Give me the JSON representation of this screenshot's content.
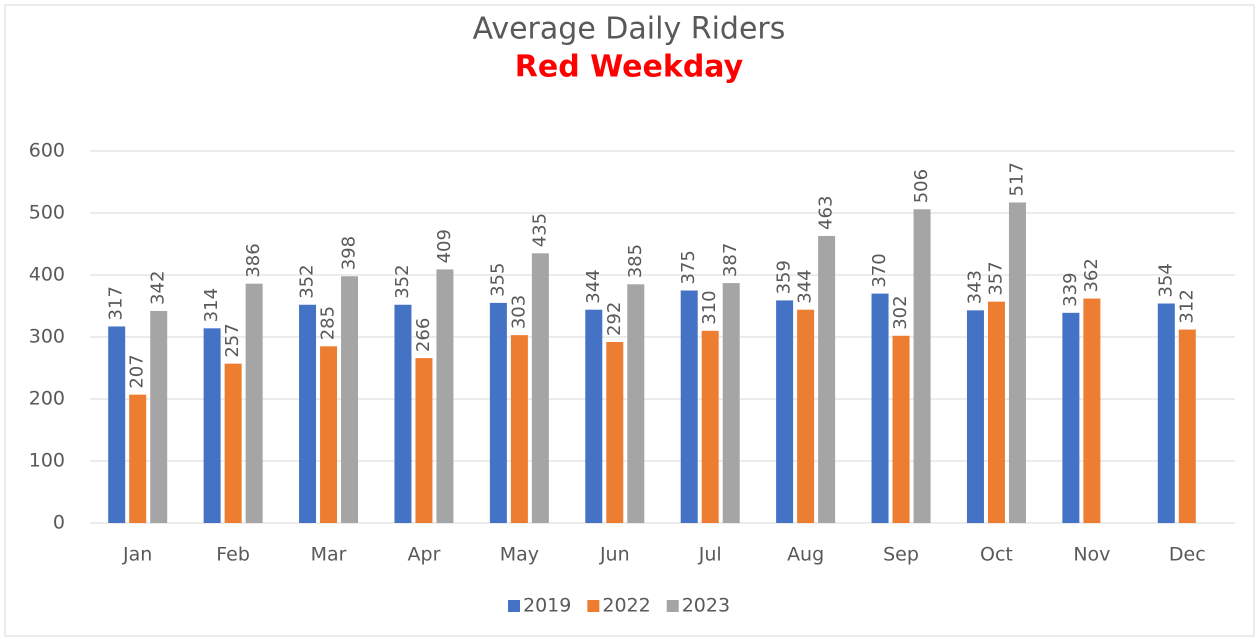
{
  "chart_data": {
    "type": "bar",
    "title": "Average Daily Riders",
    "subtitle": "Red Weekday",
    "categories": [
      "Jan",
      "Feb",
      "Mar",
      "Apr",
      "May",
      "Jun",
      "Jul",
      "Aug",
      "Sep",
      "Oct",
      "Nov",
      "Dec"
    ],
    "series": [
      {
        "name": "2019",
        "color": "#4472c4",
        "values": [
          317,
          314,
          352,
          352,
          355,
          344,
          375,
          359,
          370,
          343,
          339,
          354
        ]
      },
      {
        "name": "2022",
        "color": "#ed7d31",
        "values": [
          207,
          257,
          285,
          266,
          303,
          292,
          310,
          344,
          302,
          357,
          362,
          312
        ]
      },
      {
        "name": "2023",
        "color": "#a5a5a5",
        "values": [
          342,
          386,
          398,
          409,
          435,
          385,
          387,
          463,
          506,
          517,
          null,
          null
        ]
      }
    ],
    "ylim": [
      0,
      600
    ],
    "yticks": [
      0,
      100,
      200,
      300,
      400,
      500,
      600
    ],
    "grid": true,
    "legend": "bottom"
  }
}
